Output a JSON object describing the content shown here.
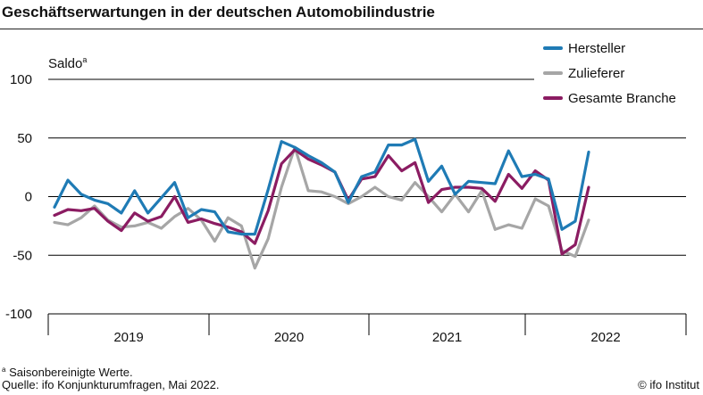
{
  "title": "Geschäftserwartungen in der deutschen Automobilindustrie",
  "unit": {
    "label": "Saldo",
    "footnote_marker": "a"
  },
  "footnote": {
    "marker": "a",
    "text": " Saisonbereinigte Werte."
  },
  "source": "Quelle: ifo Konjunkturumfragen, Mai 2022.",
  "credit": "© ifo Institut",
  "colors": {
    "hersteller": "#1f7bb5",
    "zulieferer": "#a6a6a6",
    "gesamt": "#8b1c62",
    "grid": "#000000"
  },
  "chart_data": {
    "type": "line",
    "ylim": [
      -100,
      100
    ],
    "yticks": [
      "100",
      "50",
      "0",
      "-50",
      "-100"
    ],
    "ytick_values": [
      100,
      50,
      0,
      -50,
      -100
    ],
    "xlabels": [
      "2019",
      "2020",
      "2021",
      "2022"
    ],
    "x_start": "2019-01",
    "x_end": "2022-05",
    "grid": "horizontal",
    "legend_position": "top-right",
    "series": [
      {
        "name": "Hersteller",
        "color": "#1f7bb5",
        "values": [
          -9,
          14,
          2,
          -3,
          -6,
          -14,
          5,
          -14,
          -1,
          12,
          -18,
          -11,
          -13,
          -30,
          -32,
          -32,
          6,
          47,
          42,
          35,
          29,
          21,
          -5,
          17,
          21,
          44,
          44,
          49,
          13,
          26,
          2,
          13,
          12,
          11,
          39,
          17,
          19,
          15,
          -28,
          -21,
          38
        ]
      },
      {
        "name": "Zulieferer",
        "color": "#a6a6a6",
        "values": [
          -22,
          -24,
          -18,
          -8,
          -20,
          -26,
          -25,
          -22,
          -27,
          -17,
          -10,
          -20,
          -38,
          -18,
          -25,
          -61,
          -36,
          8,
          42,
          5,
          4,
          0,
          -6,
          0,
          8,
          0,
          -3,
          12,
          0,
          -13,
          2,
          -13,
          5,
          -28,
          -24,
          -27,
          -2,
          -8,
          -46,
          -51,
          -20
        ]
      },
      {
        "name": "Gesamte Branche",
        "color": "#8b1c62",
        "values": [
          -16,
          -11,
          -12,
          -10,
          -21,
          -29,
          -14,
          -21,
          -17,
          0,
          -22,
          -19,
          -23,
          -26,
          -30,
          -40,
          -12,
          28,
          40,
          32,
          27,
          21,
          -3,
          15,
          17,
          35,
          22,
          29,
          -5,
          6,
          8,
          8,
          7,
          -4,
          19,
          7,
          22,
          14,
          -49,
          -41,
          8
        ]
      }
    ]
  }
}
